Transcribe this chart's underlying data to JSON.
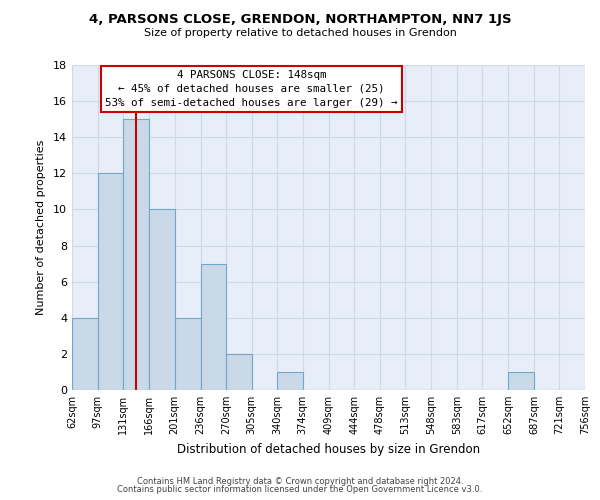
{
  "title": "4, PARSONS CLOSE, GRENDON, NORTHAMPTON, NN7 1JS",
  "subtitle": "Size of property relative to detached houses in Grendon",
  "xlabel": "Distribution of detached houses by size in Grendon",
  "ylabel": "Number of detached properties",
  "bin_edges": [
    62,
    97,
    131,
    166,
    201,
    236,
    270,
    305,
    340,
    374,
    409,
    444,
    478,
    513,
    548,
    583,
    617,
    652,
    687,
    721,
    756
  ],
  "bin_labels": [
    "62sqm",
    "97sqm",
    "131sqm",
    "166sqm",
    "201sqm",
    "236sqm",
    "270sqm",
    "305sqm",
    "340sqm",
    "374sqm",
    "409sqm",
    "444sqm",
    "478sqm",
    "513sqm",
    "548sqm",
    "583sqm",
    "617sqm",
    "652sqm",
    "687sqm",
    "721sqm",
    "756sqm"
  ],
  "counts": [
    4,
    12,
    15,
    10,
    4,
    7,
    2,
    0,
    1,
    0,
    0,
    0,
    0,
    0,
    0,
    0,
    0,
    1,
    0,
    0
  ],
  "bar_color": "#c9d9e8",
  "bar_edge_color": "#6fa8c8",
  "property_line_x": 148,
  "property_line_color": "#cc0000",
  "annotation_title": "4 PARSONS CLOSE: 148sqm",
  "annotation_line1": "← 45% of detached houses are smaller (25)",
  "annotation_line2": "53% of semi-detached houses are larger (29) →",
  "annotation_box_color": "#ffffff",
  "annotation_box_edge": "#cc0000",
  "ylim": [
    0,
    18
  ],
  "yticks": [
    0,
    2,
    4,
    6,
    8,
    10,
    12,
    14,
    16,
    18
  ],
  "grid_color": "#d0d8e8",
  "background_color": "#e8eef8",
  "footer_line1": "Contains HM Land Registry data © Crown copyright and database right 2024.",
  "footer_line2": "Contains public sector information licensed under the Open Government Licence v3.0."
}
